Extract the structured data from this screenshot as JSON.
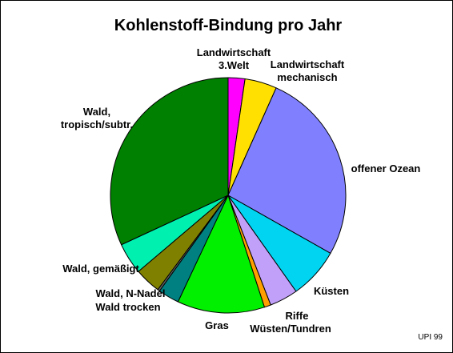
{
  "chart_data": {
    "type": "pie",
    "title": "Kohlenstoff-Bindung pro Jahr",
    "credit": "UPI 99",
    "slices": [
      {
        "label": [
          "Landwirtschaft",
          "3.Welt"
        ],
        "value": 2.3,
        "color": "#ff00ff"
      },
      {
        "label": [
          "Landwirtschaft",
          "mechanisch"
        ],
        "value": 4.4,
        "color": "#ffe000"
      },
      {
        "label": [
          "offener Ozean"
        ],
        "value": 26.5,
        "color": "#8080ff"
      },
      {
        "label": [
          "Küsten"
        ],
        "value": 7.0,
        "color": "#00d4f0"
      },
      {
        "label": [
          "Riffe"
        ],
        "value": 3.9,
        "color": "#c0a0f8"
      },
      {
        "label": [
          "Wüsten/Tundren"
        ],
        "value": 0.9,
        "color": "#ffa000"
      },
      {
        "label": [
          "Gras"
        ],
        "value": 12.0,
        "color": "#00f000"
      },
      {
        "label": [
          "Wald trocken"
        ],
        "value": 2.9,
        "color": "#008080"
      },
      {
        "label": [
          "Wald, N-Nadel"
        ],
        "value": 0.3,
        "color": "#606060"
      },
      {
        "label": [
          "Wald, gemäßigt"
        ],
        "value": 3.6,
        "color": "#808000"
      },
      {
        "label": [
          "Wald, gemäßigt"
        ],
        "value": 4.3,
        "color": "#00f0b0"
      },
      {
        "label": [
          "Wald,",
          "tropisch/subtr."
        ],
        "value": 31.9,
        "color": "#008000"
      }
    ],
    "printed_labels": [
      {
        "slice": 0,
        "lines": [
          "Landwirtschaft",
          "3.Welt"
        ]
      },
      {
        "slice": 1,
        "lines": [
          "Landwirtschaft",
          "mechanisch"
        ]
      },
      {
        "slice": 2,
        "lines": [
          "offener Ozean"
        ]
      },
      {
        "slice": 3,
        "lines": [
          "Küsten"
        ]
      },
      {
        "slice": 4,
        "lines": [
          "Riffe"
        ]
      },
      {
        "slice": 5,
        "lines": [
          "Wüsten/Tundren"
        ]
      },
      {
        "slice": 6,
        "lines": [
          "Gras"
        ]
      },
      {
        "slice": 7,
        "lines": [
          "Wald trocken"
        ]
      },
      {
        "slice": 8,
        "lines": [
          "Wald, N-Nadel"
        ]
      },
      {
        "slice": 9,
        "lines": [
          "Wald, gemäßigt"
        ]
      },
      {
        "slice": 11,
        "lines": [
          "Wald,",
          "tropisch/subtr."
        ]
      }
    ],
    "start_angle_deg": 0,
    "direction": "clockwise",
    "legend": "none"
  }
}
